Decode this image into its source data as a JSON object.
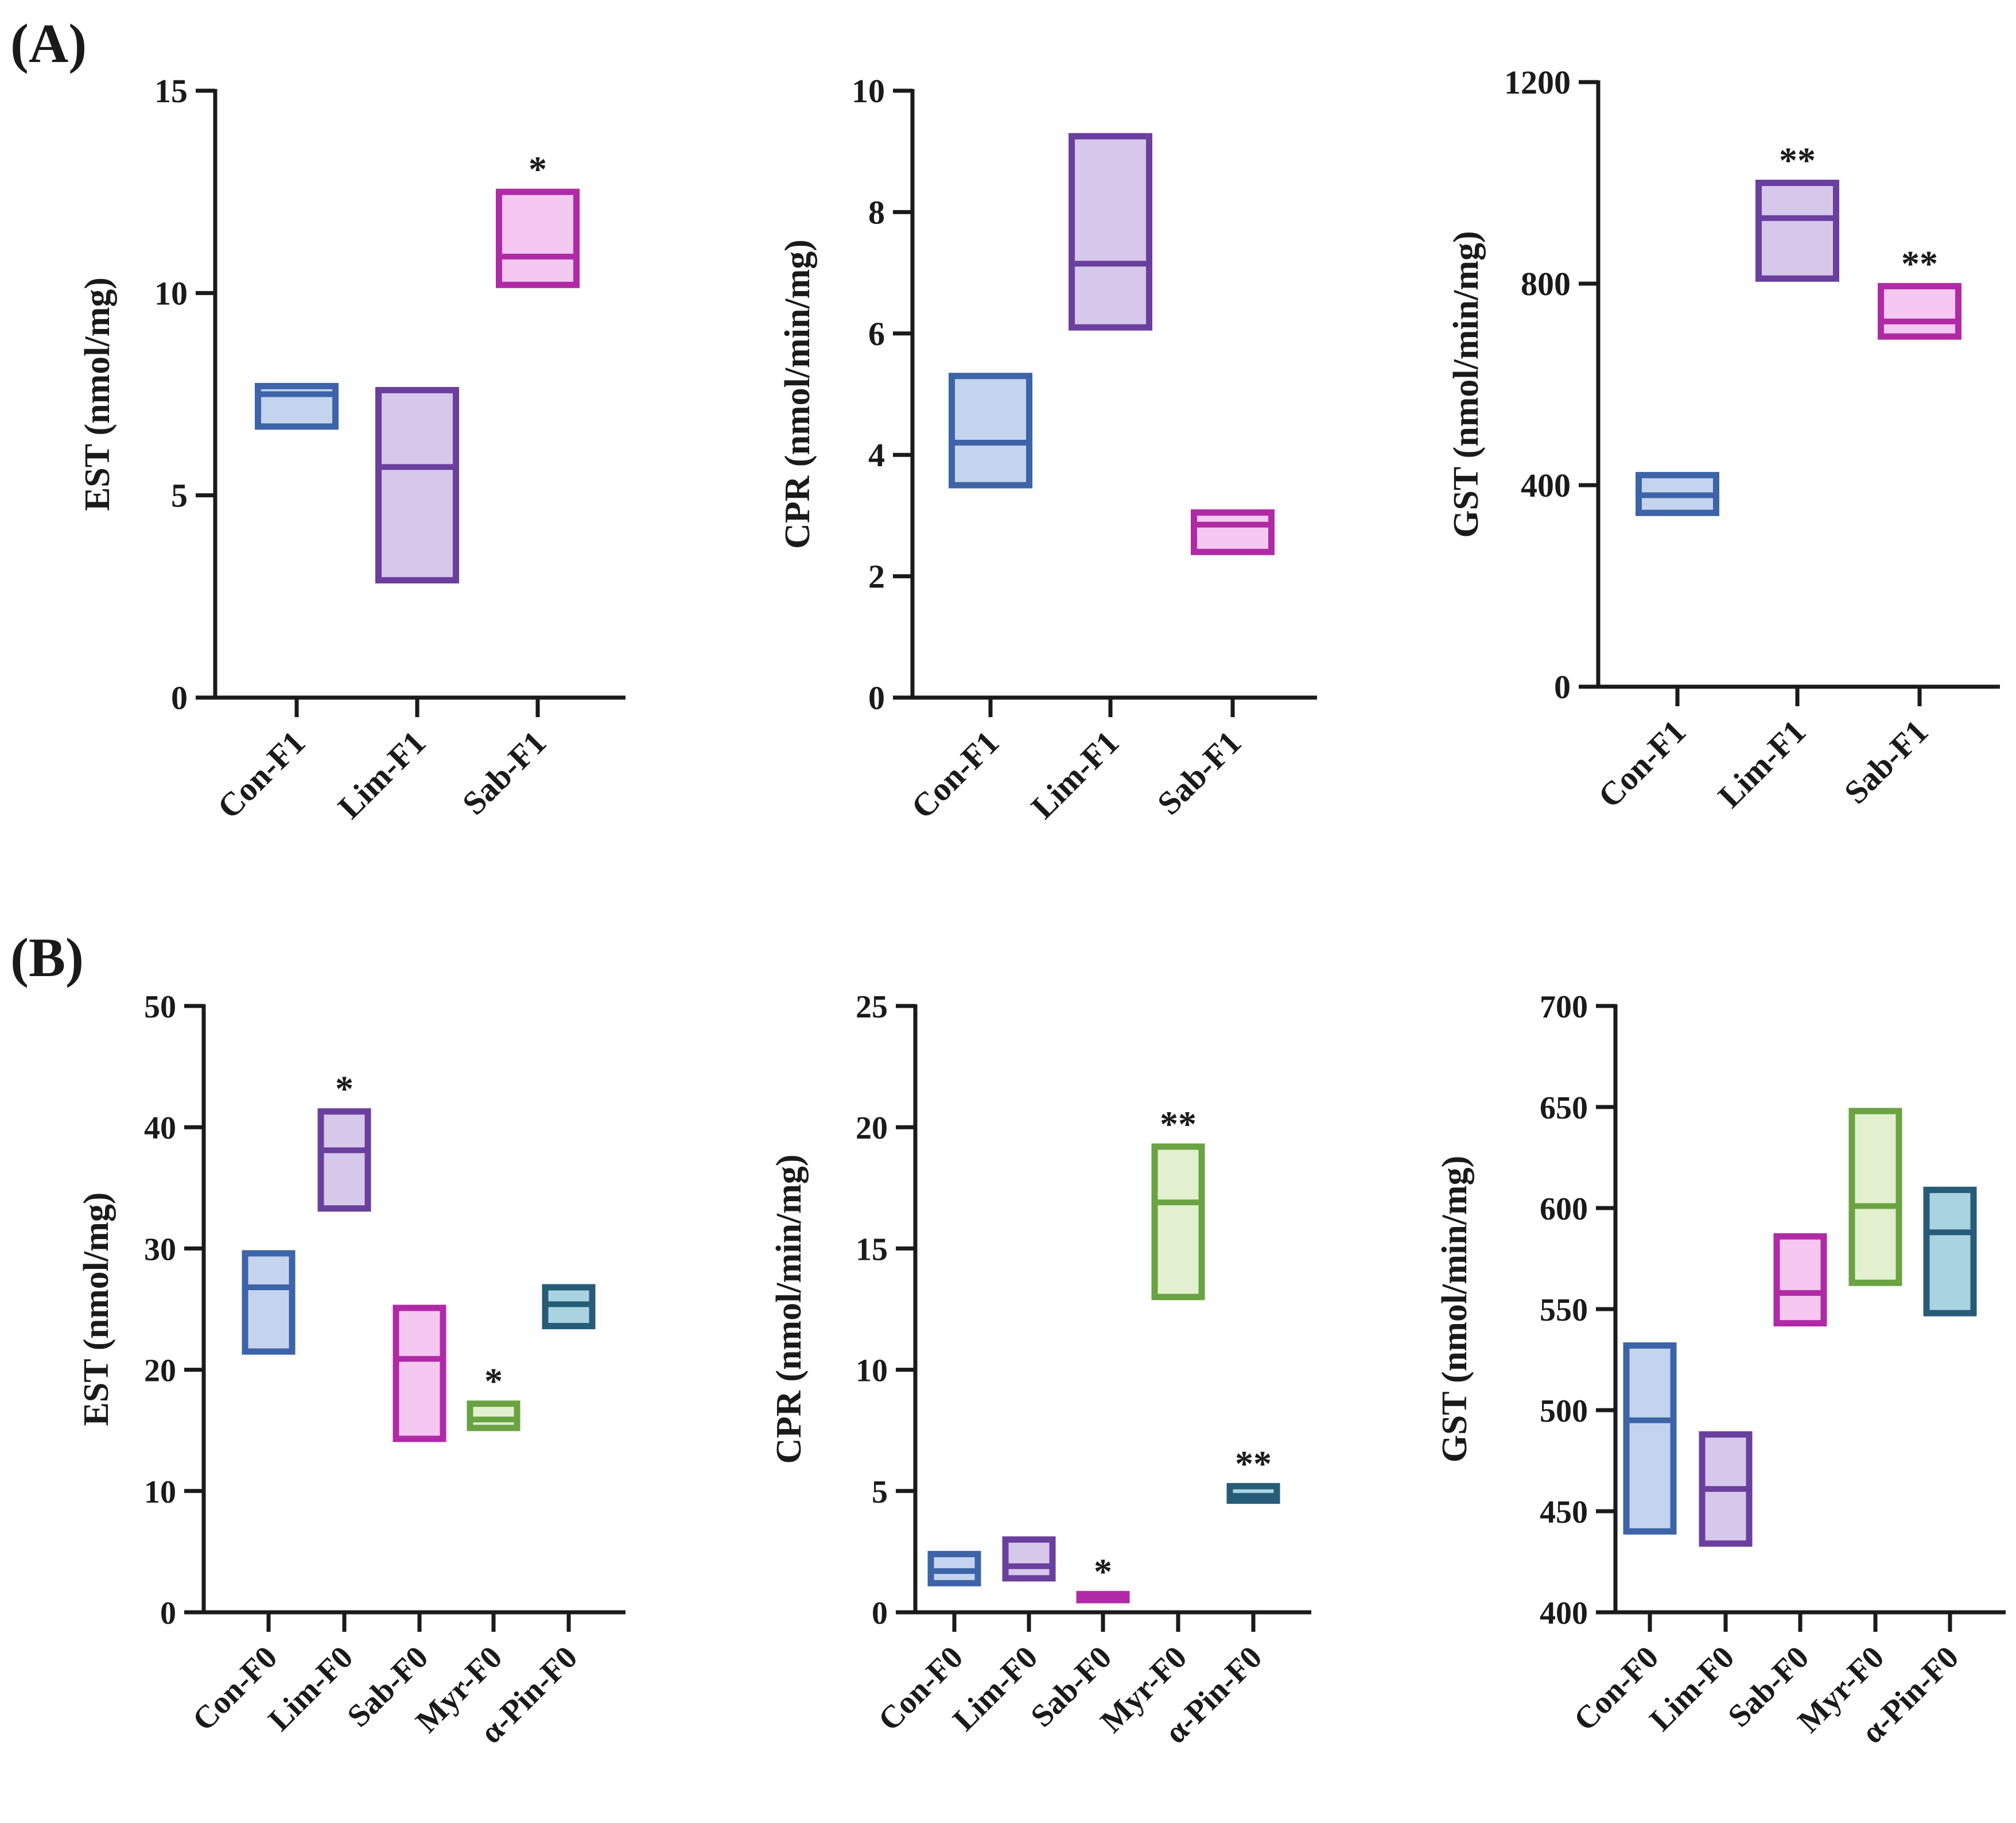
{
  "panels": [
    {
      "label": "(A)"
    },
    {
      "label": "(B)"
    }
  ],
  "colors": {
    "Con": {
      "stroke": "#3d64a8",
      "fill": "#c4d4ee"
    },
    "Lim": {
      "stroke": "#6a3f9e",
      "fill": "#d6c8ea"
    },
    "Sab": {
      "stroke": "#b02aa6",
      "fill": "#f4c8f0"
    },
    "Myr": {
      "stroke": "#6aa342",
      "fill": "#e2f0cf"
    },
    "Pin": {
      "stroke": "#275c78",
      "fill": "#a9d3e0"
    },
    "axis": "#1a1a1a"
  },
  "chart_data": [
    {
      "type": "box",
      "panel": "(A)",
      "ylabel": "EST (nmol/mg)",
      "ylim": [
        0,
        15
      ],
      "yticks": [
        "0",
        "5",
        "10",
        "15"
      ],
      "categories": [
        "Con-F1",
        "Lim-F1",
        "Sab-F1"
      ],
      "series": [
        {
          "name": "Con-F1",
          "min": 6.7,
          "median": 7.5,
          "max": 7.7,
          "sig": ""
        },
        {
          "name": "Lim-F1",
          "min": 2.9,
          "median": 5.7,
          "max": 7.6,
          "sig": ""
        },
        {
          "name": "Sab-F1",
          "min": 10.2,
          "median": 10.9,
          "max": 12.5,
          "sig": "*"
        }
      ]
    },
    {
      "type": "box",
      "panel": "(A)",
      "ylabel": "CPR (nmol/min/mg)",
      "ylim": [
        0,
        10
      ],
      "yticks": [
        "0",
        "2",
        "4",
        "6",
        "8",
        "10"
      ],
      "categories": [
        "Con-F1",
        "Lim-F1",
        "Sab-F1"
      ],
      "series": [
        {
          "name": "Con-F1",
          "min": 3.5,
          "median": 4.2,
          "max": 5.3,
          "sig": ""
        },
        {
          "name": "Lim-F1",
          "min": 6.1,
          "median": 7.15,
          "max": 9.25,
          "sig": ""
        },
        {
          "name": "Sab-F1",
          "min": 2.4,
          "median": 2.85,
          "max": 3.05,
          "sig": ""
        }
      ]
    },
    {
      "type": "box",
      "panel": "(A)",
      "ylabel": "GST (nmol/min/mg)",
      "ylim": [
        0,
        1200
      ],
      "yticks": [
        "0",
        "400",
        "800",
        "1200"
      ],
      "categories": [
        "Con-F1",
        "Lim-F1",
        "Sab-F1"
      ],
      "series": [
        {
          "name": "Con-F1",
          "min": 345,
          "median": 380,
          "max": 420,
          "sig": ""
        },
        {
          "name": "Lim-F1",
          "min": 810,
          "median": 930,
          "max": 1000,
          "sig": "**"
        },
        {
          "name": "Sab-F1",
          "min": 695,
          "median": 725,
          "max": 795,
          "sig": "**"
        }
      ]
    },
    {
      "type": "box",
      "panel": "(B)",
      "ylabel": "EST (nmol/mg)",
      "ylim": [
        0,
        50
      ],
      "yticks": [
        "0",
        "10",
        "20",
        "30",
        "40",
        "50"
      ],
      "categories": [
        "Con-F0",
        "Lim-F0",
        "Sab-F0",
        "Myr-F0",
        "α-Pin-F0"
      ],
      "series": [
        {
          "name": "Con-F0",
          "min": 21.5,
          "median": 26.8,
          "max": 29.6,
          "sig": ""
        },
        {
          "name": "Lim-F0",
          "min": 33.3,
          "median": 38.1,
          "max": 41.3,
          "sig": "*"
        },
        {
          "name": "Sab-F0",
          "min": 14.3,
          "median": 20.9,
          "max": 25.1,
          "sig": ""
        },
        {
          "name": "Myr-F0",
          "min": 15.2,
          "median": 15.9,
          "max": 17.2,
          "sig": "*"
        },
        {
          "name": "α-Pin-F0",
          "min": 23.6,
          "median": 25.4,
          "max": 26.8,
          "sig": ""
        }
      ]
    },
    {
      "type": "box",
      "panel": "(B)",
      "ylabel": "CPR (nmol/min/mg)",
      "ylim": [
        0,
        25
      ],
      "yticks": [
        "0",
        "5",
        "10",
        "15",
        "20",
        "25"
      ],
      "categories": [
        "Con-F0",
        "Lim-F0",
        "Sab-F0",
        "Myr-F0",
        "α-Pin-F0"
      ],
      "series": [
        {
          "name": "Con-F0",
          "min": 1.2,
          "median": 1.7,
          "max": 2.4,
          "sig": ""
        },
        {
          "name": "Lim-F0",
          "min": 1.4,
          "median": 1.9,
          "max": 3.0,
          "sig": ""
        },
        {
          "name": "Sab-F0",
          "min": 0.5,
          "median": 0.6,
          "max": 0.75,
          "sig": "*"
        },
        {
          "name": "Myr-F0",
          "min": 13.0,
          "median": 16.9,
          "max": 19.2,
          "sig": "**"
        },
        {
          "name": "α-Pin-F0",
          "min": 4.6,
          "median": 4.8,
          "max": 5.2,
          "sig": "**"
        }
      ]
    },
    {
      "type": "box",
      "panel": "(B)",
      "ylabel": "GST (nmol/min/mg)",
      "ylim": [
        400,
        700
      ],
      "yticks": [
        "400",
        "450",
        "500",
        "550",
        "600",
        "650",
        "700"
      ],
      "categories": [
        "Con-F0",
        "Lim-F0",
        "Sab-F0",
        "Myr-F0",
        "α-Pin-F0"
      ],
      "series": [
        {
          "name": "Con-F0",
          "min": 440,
          "median": 495,
          "max": 532,
          "sig": ""
        },
        {
          "name": "Lim-F0",
          "min": 434,
          "median": 461,
          "max": 488,
          "sig": ""
        },
        {
          "name": "Sab-F0",
          "min": 543,
          "median": 558,
          "max": 586,
          "sig": ""
        },
        {
          "name": "Myr-F0",
          "min": 563,
          "median": 601,
          "max": 648,
          "sig": ""
        },
        {
          "name": "α-Pin-F0",
          "min": 548,
          "median": 588,
          "max": 609,
          "sig": ""
        }
      ]
    }
  ]
}
